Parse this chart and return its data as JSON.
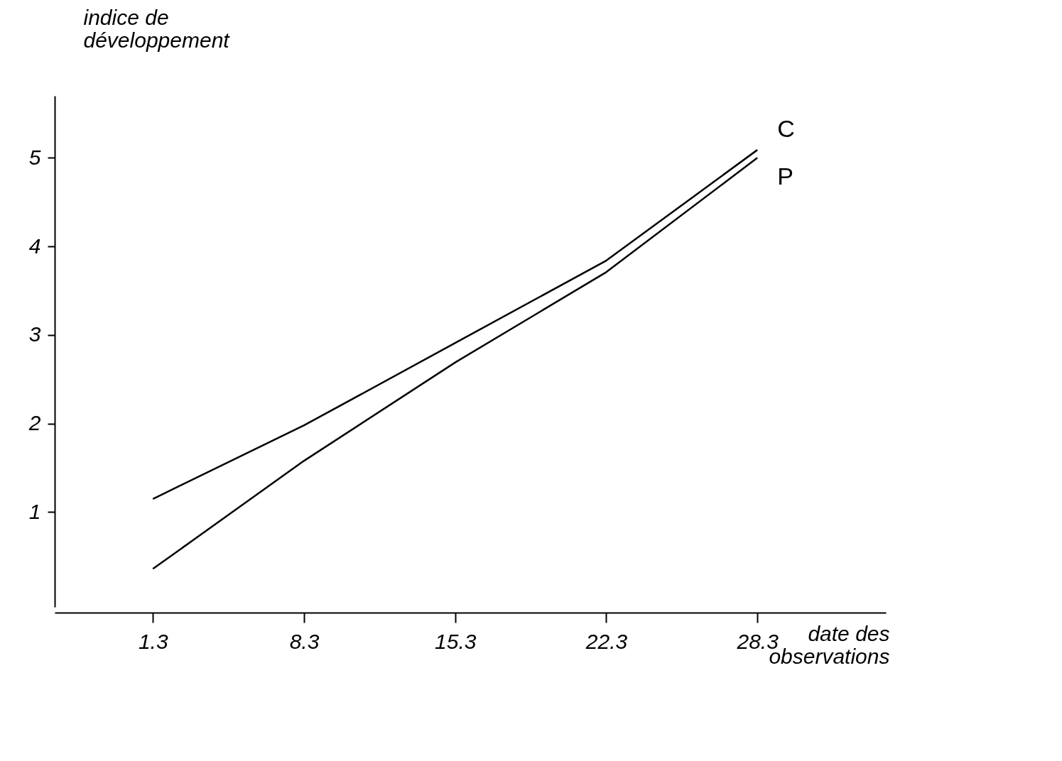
{
  "chart_data": {
    "type": "line",
    "xlabel": "date des observations",
    "ylabel": "indice de développement",
    "categories": [
      "1.3",
      "8.3",
      "15.3",
      "22.3",
      "28.3"
    ],
    "series": [
      {
        "name": "C",
        "color": "#000000",
        "values": [
          1.15,
          1.98,
          2.91,
          3.84,
          5.09
        ]
      },
      {
        "name": "P",
        "color": "#000000",
        "values": [
          0.36,
          1.58,
          2.69,
          3.71,
          5.0
        ]
      }
    ],
    "ylim": [
      -0.07,
      5.7
    ],
    "yticks": [
      1,
      2,
      3,
      4,
      5
    ],
    "grid": false,
    "legend": false,
    "marker": "none",
    "line_style": "solid"
  }
}
